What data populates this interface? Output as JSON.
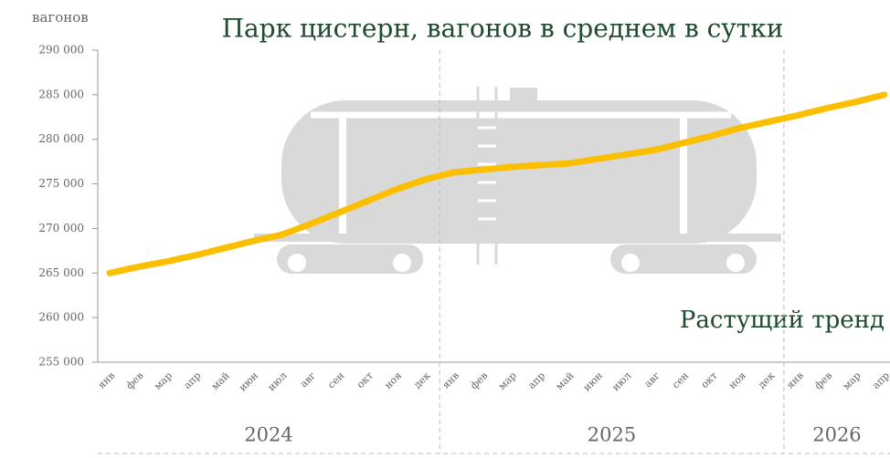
{
  "chart_data": {
    "type": "line",
    "title": "Парк цистерн, вагонов в среднем в сутки",
    "y_label": "вагонов",
    "annotation": "Растущий тренд",
    "categories": [
      "янв",
      "фев",
      "мар",
      "апр",
      "май",
      "июн",
      "июл",
      "авг",
      "сен",
      "окт",
      "ноя",
      "дек",
      "янв",
      "фев",
      "мар",
      "апр",
      "май",
      "июн",
      "июл",
      "авг",
      "сен",
      "окт",
      "ноя",
      "дек",
      "янв",
      "фев",
      "мар",
      "апр"
    ],
    "years": [
      "2024",
      "2025",
      "2026"
    ],
    "values": [
      265000,
      265700,
      266300,
      267000,
      267800,
      268600,
      269300,
      270500,
      271800,
      273100,
      274400,
      275500,
      276300,
      276600,
      276900,
      277100,
      277300,
      277800,
      278300,
      278800,
      279600,
      280400,
      281300,
      282000,
      282700,
      283500,
      284200,
      285000
    ],
    "color": "#fcbf00",
    "ylim": [
      255000,
      290000
    ],
    "yticks": [
      {
        "value": 255000,
        "label": "255 000"
      },
      {
        "value": 260000,
        "label": "260 000"
      },
      {
        "value": 265000,
        "label": "265 000"
      },
      {
        "value": 270000,
        "label": "270 000"
      },
      {
        "value": 275000,
        "label": "275 000"
      },
      {
        "value": 280000,
        "label": "280 000"
      },
      {
        "value": 285000,
        "label": "285 000"
      },
      {
        "value": 290000,
        "label": "290 000"
      }
    ]
  }
}
